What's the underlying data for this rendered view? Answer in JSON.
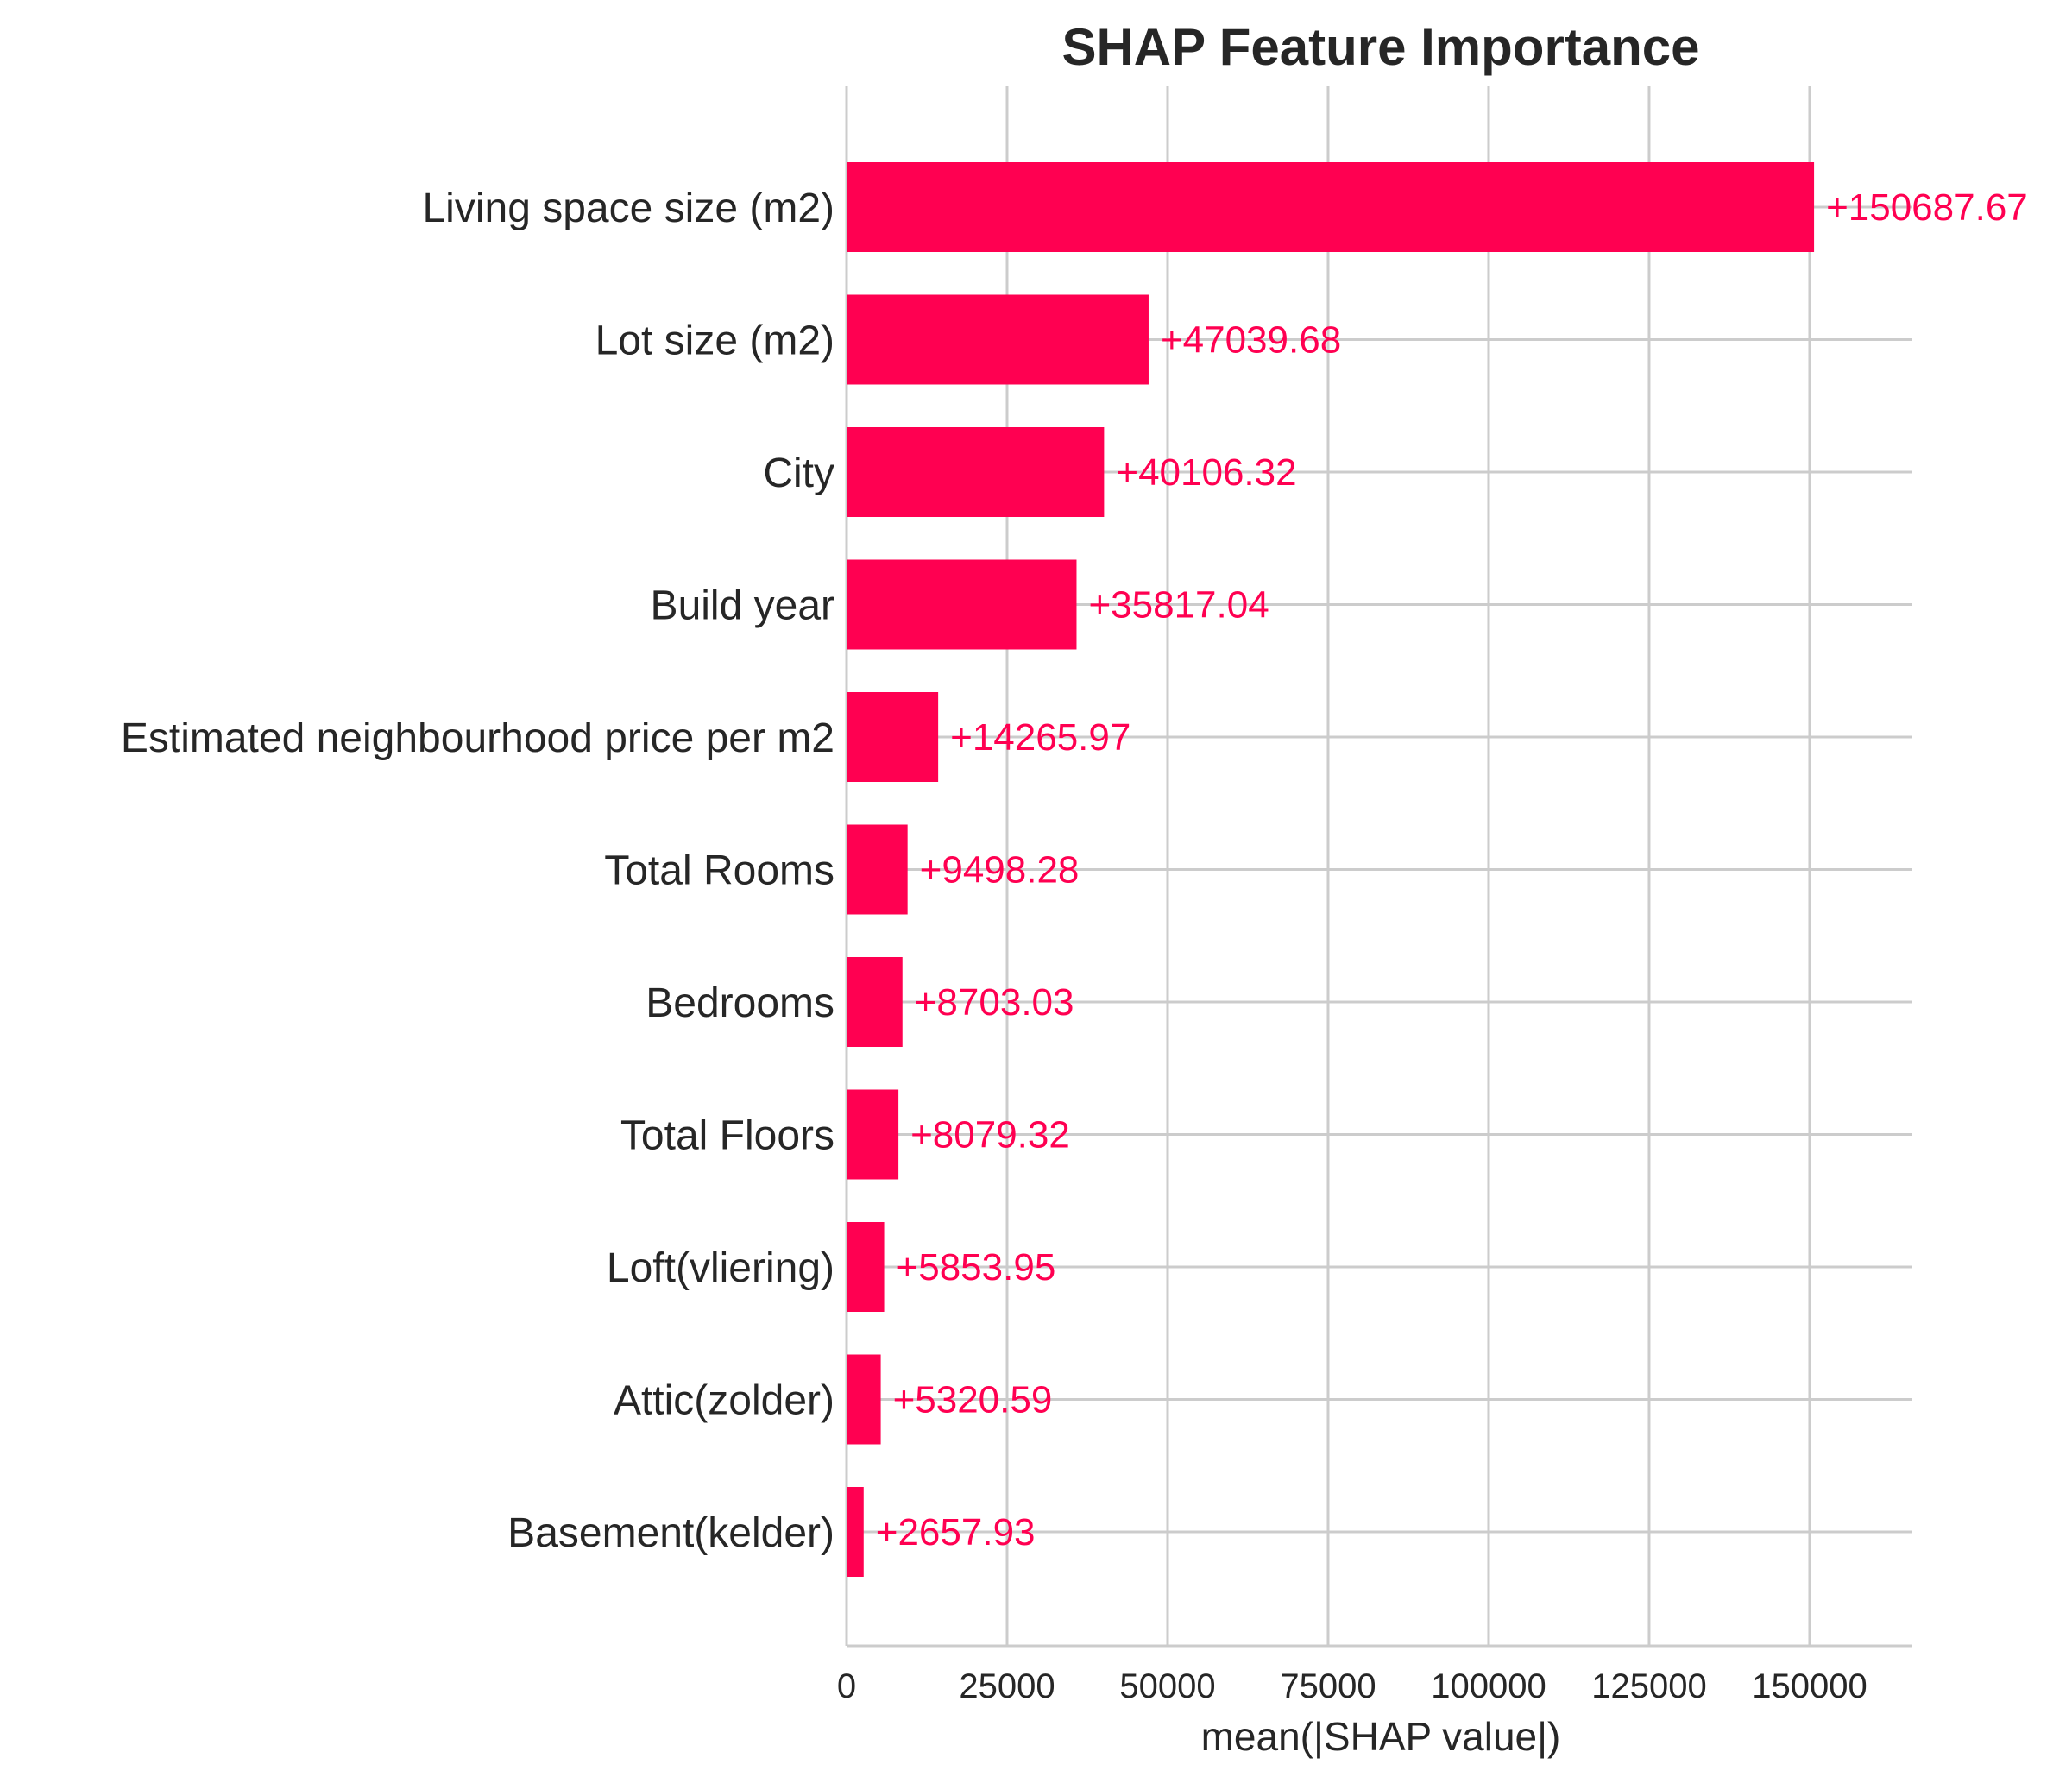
{
  "chart_data": {
    "type": "bar",
    "orientation": "horizontal",
    "title": "SHAP Feature Importance",
    "xlabel": "mean(|SHAP value|)",
    "ylabel": "",
    "xlim": [
      0,
      166000
    ],
    "xticks": [
      0,
      25000,
      50000,
      75000,
      100000,
      125000,
      150000
    ],
    "xtick_labels": [
      "0",
      "25000",
      "50000",
      "75000",
      "100000",
      "125000",
      "150000"
    ],
    "grid": true,
    "colors": {
      "bar": "#ff0051",
      "grid": "#cccccc",
      "text": "#262626"
    },
    "categories": [
      "Living space size (m2)",
      "Lot size (m2)",
      "City",
      "Build year",
      "Estimated neighbourhood price per m2",
      "Total Rooms",
      "Bedrooms",
      "Total Floors",
      "Loft(vliering)",
      "Attic(zolder)",
      "Basement(kelder)"
    ],
    "values": [
      150687.67,
      47039.68,
      40106.32,
      35817.04,
      14265.97,
      9498.28,
      8703.03,
      8079.32,
      5853.95,
      5320.59,
      2657.93
    ],
    "value_labels": [
      "+150687.67",
      "+47039.68",
      "+40106.32",
      "+35817.04",
      "+14265.97",
      "+9498.28",
      "+8703.03",
      "+8079.32",
      "+5853.95",
      "+5320.59",
      "+2657.93"
    ]
  }
}
